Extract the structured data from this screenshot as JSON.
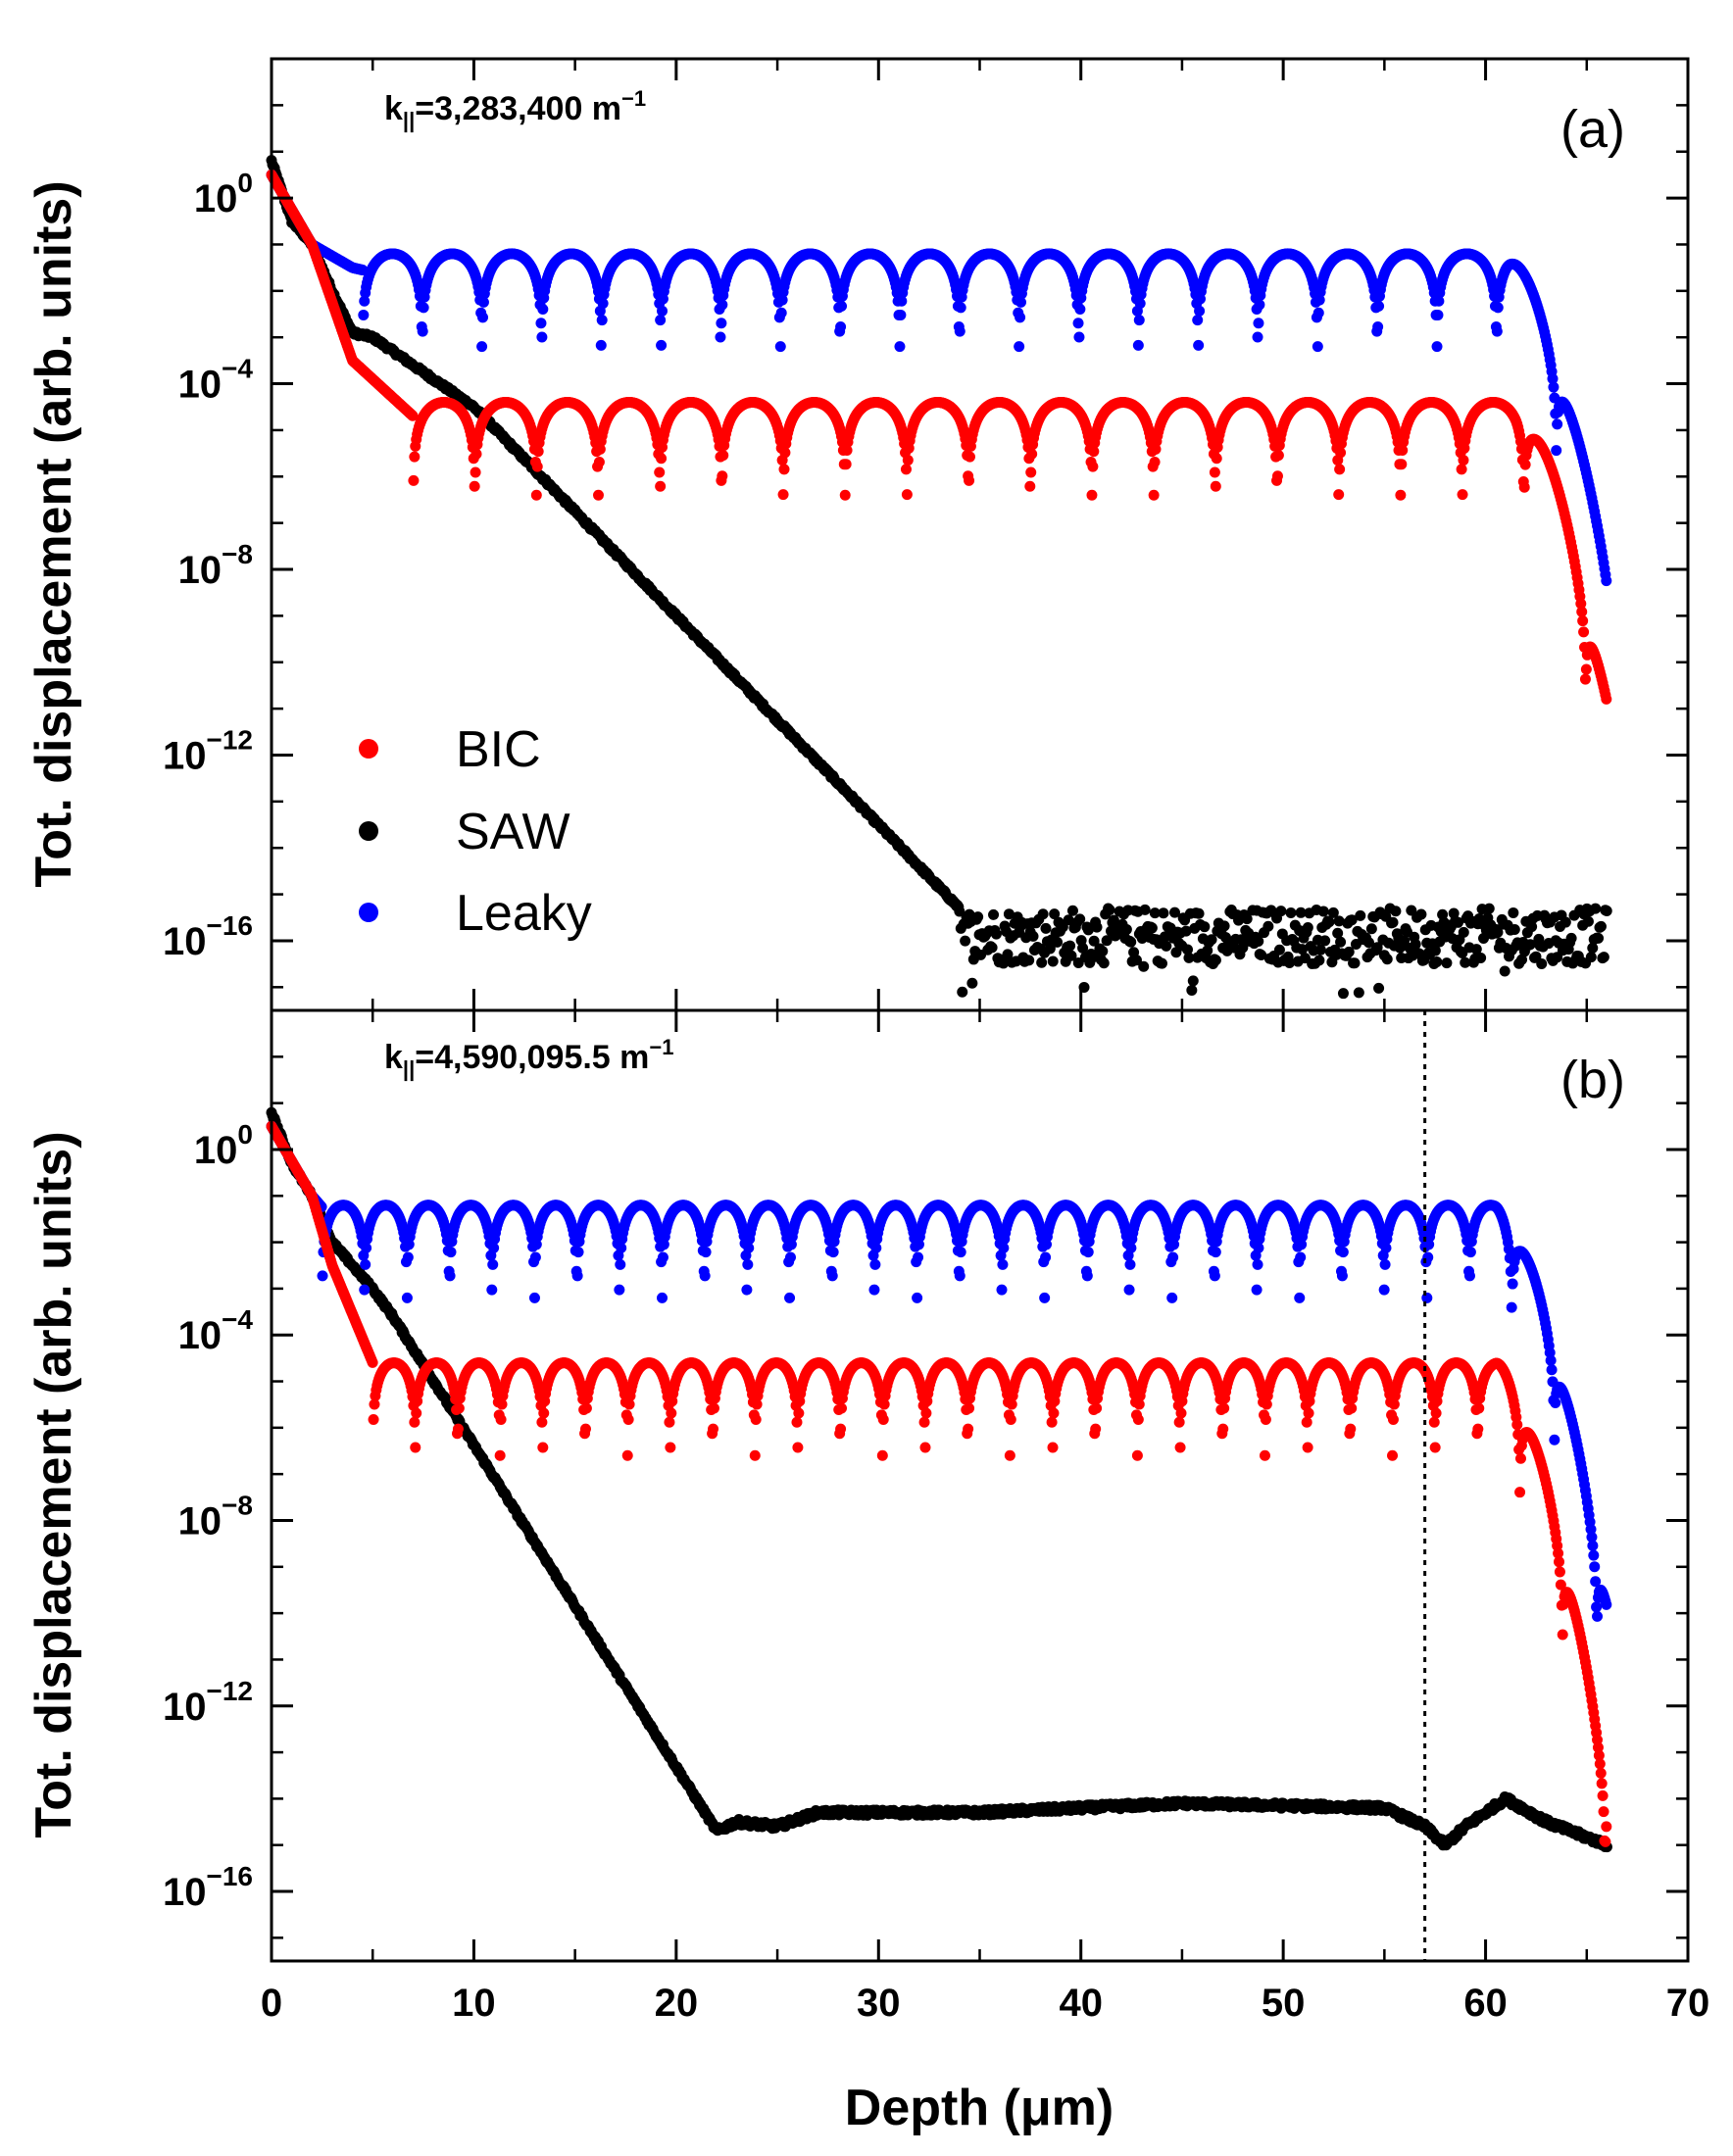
{
  "colors": {
    "BIC": "#ff0000",
    "SAW": "#000000",
    "Leaky": "#0000ff",
    "frame": "#000000"
  },
  "chart_data": {
    "type": "scatter",
    "xlabel": "Depth (μm)",
    "ylabel": "Tot. displacement (arb. units)",
    "xlim": [
      0,
      70
    ],
    "x_ticks": [
      0,
      10,
      20,
      30,
      40,
      50,
      60,
      70
    ],
    "x_tick_labels": [
      "0",
      "10",
      "20",
      "30",
      "40",
      "50",
      "60",
      "70"
    ],
    "y_scale": "log",
    "ylim_log10": [
      -17.5,
      3.0
    ],
    "y_tick_exponents": [
      0,
      -4,
      -8,
      -12,
      -16
    ],
    "y_tick_base": "10",
    "y_tick_exponent_labels": [
      "0",
      "−4",
      "−8",
      "−12",
      "−16"
    ],
    "legend": {
      "placement": "lower-left of panel (a)",
      "entries": [
        {
          "label": "BIC",
          "color": "#ff0000"
        },
        {
          "label": "SAW",
          "color": "#000000"
        },
        {
          "label": "Leaky",
          "color": "#0000ff"
        }
      ]
    },
    "panels": [
      {
        "id": "a",
        "panel_label": "(a)",
        "k_prefix": "k",
        "k_subscript": "||",
        "k_value": "=3,283,400 m",
        "k_exponent": "−1",
        "x_end": 66,
        "series": [
          {
            "name": "SAW",
            "decay_points": [
              [
                0,
                0.8
              ],
              [
                1,
                -0.5
              ],
              [
                2,
                -1.0
              ],
              [
                3,
                -2.0
              ],
              [
                4,
                -2.9
              ],
              [
                5,
                -3.0
              ],
              [
                6,
                -3.3
              ],
              [
                10,
                -4.5
              ],
              [
                34.0,
                -15.3
              ]
            ],
            "noise_floor": -15.9,
            "noise_spread": 0.6
          },
          {
            "name": "BIC",
            "early_decay": [
              [
                0,
                0.5
              ],
              [
                2,
                -1.0
              ],
              [
                4,
                -3.5
              ],
              [
                7,
                -4.7
              ]
            ],
            "lobe_top": -4.4,
            "lobe_period": 3.05,
            "lobe_start": 7.0,
            "dip_depth": 2.0,
            "tail_start": 61.5,
            "tail_end_value": -10.8
          },
          {
            "name": "Leaky",
            "early_decay": [
              [
                0,
                0.5
              ],
              [
                2,
                -1.0
              ],
              [
                4,
                -1.5
              ],
              [
                5,
                -1.6
              ]
            ],
            "lobe_top": -1.2,
            "lobe_period": 2.95,
            "lobe_start": 4.5,
            "dip_depth": 2.0,
            "tail_start": 61.0,
            "tail_end_value": -8.0
          }
        ]
      },
      {
        "id": "b",
        "panel_label": "(b)",
        "k_prefix": "k",
        "k_subscript": "||",
        "k_value": "=4,590,095.5 m",
        "k_exponent": "−1",
        "x_end": 66,
        "vertical_marker_x": 57,
        "series": [
          {
            "name": "SAW",
            "decay_points": [
              [
                0,
                0.8
              ],
              [
                1,
                -0.3
              ],
              [
                2,
                -1.0
              ],
              [
                3,
                -2.0
              ],
              [
                4,
                -2.5
              ],
              [
                5,
                -3.0
              ],
              [
                6,
                -3.6
              ],
              [
                22.0,
                -14.7
              ]
            ],
            "floor_points": [
              [
                22.0,
                -14.7
              ],
              [
                23,
                -14.5
              ],
              [
                25,
                -14.6
              ],
              [
                27,
                -14.3
              ],
              [
                35,
                -14.3
              ],
              [
                45,
                -14.1
              ],
              [
                55,
                -14.2
              ],
              [
                57,
                -14.6
              ],
              [
                58,
                -15.0
              ],
              [
                59,
                -14.6
              ],
              [
                61,
                -14.0
              ],
              [
                63,
                -14.5
              ],
              [
                66,
                -15.0
              ]
            ]
          },
          {
            "name": "BIC",
            "early_decay": [
              [
                0,
                0.5
              ],
              [
                2,
                -1.0
              ],
              [
                3,
                -2.5
              ],
              [
                5,
                -4.6
              ]
            ],
            "lobe_top": -4.6,
            "lobe_period": 2.1,
            "lobe_start": 5.0,
            "dip_depth": 2.0,
            "tail_start": 60.5,
            "tail_end_value": -13.7
          },
          {
            "name": "Leaky",
            "early_decay": [
              [
                0,
                0.5
              ],
              [
                2,
                -1.0
              ],
              [
                3,
                -1.5
              ]
            ],
            "lobe_top": -1.2,
            "lobe_period": 2.1,
            "lobe_start": 2.5,
            "dip_depth": 2.0,
            "tail_start": 60.5,
            "tail_end_value": -9.7
          }
        ]
      }
    ]
  }
}
